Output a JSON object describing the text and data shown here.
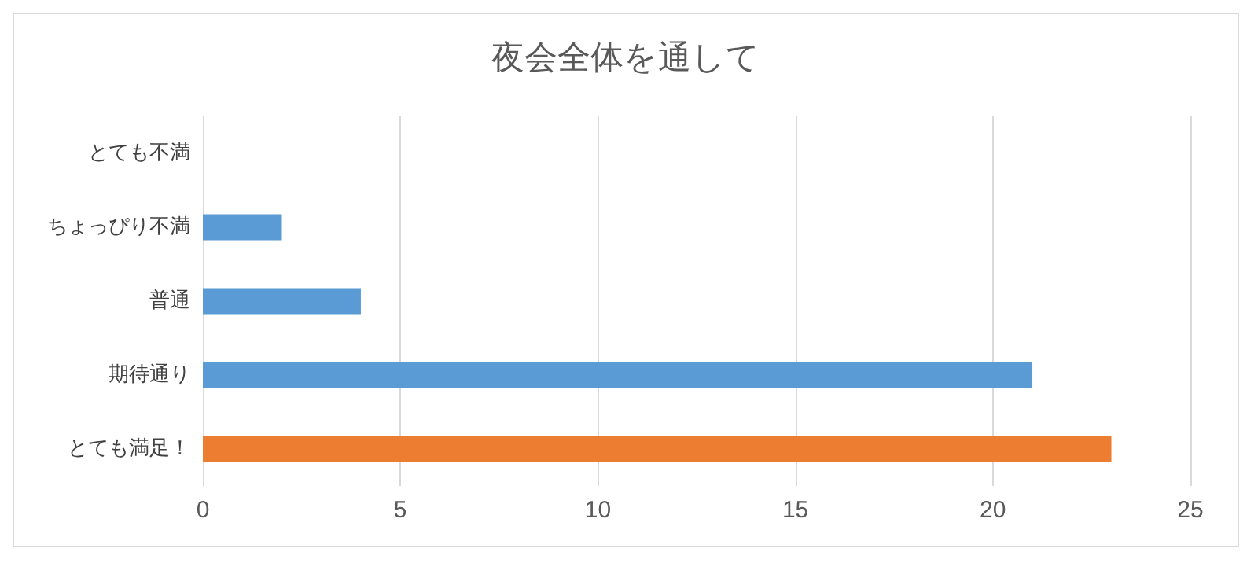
{
  "chart_data": {
    "type": "bar",
    "title": "夜会全体を通して",
    "orientation": "horizontal",
    "categories": [
      "とても不満",
      "ちょっぴり不満",
      "普通",
      "期待通り",
      "とても満足！"
    ],
    "values": [
      0,
      2,
      4,
      21,
      23
    ],
    "colors": [
      "#5b9bd5",
      "#5b9bd5",
      "#5b9bd5",
      "#5b9bd5",
      "#ed7d31"
    ],
    "xlim": [
      0,
      25
    ],
    "xticks": [
      0,
      5,
      10,
      15,
      20,
      25
    ],
    "grid": "x"
  }
}
